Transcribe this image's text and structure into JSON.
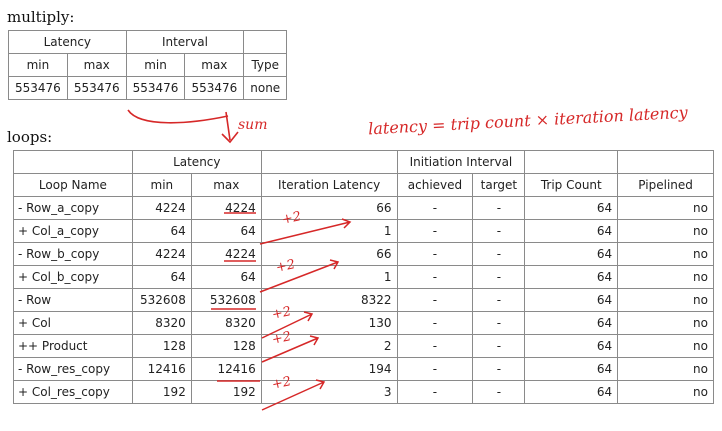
{
  "multiply": {
    "label": "multiply:",
    "group_headers": [
      "Latency",
      "Interval",
      ""
    ],
    "sub_headers": [
      "min",
      "max",
      "min",
      "max",
      "Type"
    ],
    "row": [
      "553476",
      "553476",
      "553476",
      "553476",
      "none"
    ]
  },
  "loops": {
    "label": "loops:",
    "group_headers": {
      "latency": "Latency",
      "initiation_interval": "Initiation Interval"
    },
    "columns": [
      "Loop Name",
      "min",
      "max",
      "Iteration Latency",
      "achieved",
      "target",
      "Trip Count",
      "Pipelined"
    ],
    "rows": [
      [
        "- Row_a_copy",
        "4224",
        "4224",
        "66",
        "-",
        "-",
        "64",
        "no"
      ],
      [
        "+ Col_a_copy",
        "64",
        "64",
        "1",
        "-",
        "-",
        "64",
        "no"
      ],
      [
        "- Row_b_copy",
        "4224",
        "4224",
        "66",
        "-",
        "-",
        "64",
        "no"
      ],
      [
        "+ Col_b_copy",
        "64",
        "64",
        "1",
        "-",
        "-",
        "64",
        "no"
      ],
      [
        "- Row",
        "532608",
        "532608",
        "8322",
        "-",
        "-",
        "64",
        "no"
      ],
      [
        "+ Col",
        "8320",
        "8320",
        "130",
        "-",
        "-",
        "64",
        "no"
      ],
      [
        "++ Product",
        "128",
        "128",
        "2",
        "-",
        "-",
        "64",
        "no"
      ],
      [
        "- Row_res_copy",
        "12416",
        "12416",
        "194",
        "-",
        "-",
        "64",
        "no"
      ],
      [
        "+ Col_res_copy",
        "192",
        "192",
        "3",
        "-",
        "-",
        "64",
        "no"
      ]
    ]
  },
  "annotations": {
    "formula": "latency = trip count × iteration latency",
    "sum": "sum",
    "plus_two": "+2",
    "ink_color": "#d62828"
  }
}
